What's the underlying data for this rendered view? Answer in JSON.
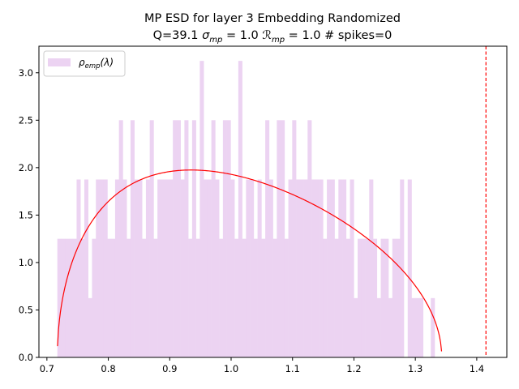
{
  "chart_data": {
    "type": "bar",
    "title_line1": "MP ESD for layer 3 Embedding Randomized",
    "title_line2": {
      "prefix": "Q=39.1 ",
      "sigma_sym": "σ",
      "sigma_sub": "mp",
      "sigma_val": " = 1.0 ",
      "r_sym": "ℛ",
      "r_sub": "mp",
      "r_val": " = 1.0 # spikes=0"
    },
    "legend": {
      "placement": "top-left",
      "rho": "ρ",
      "rho_sub": "emp",
      "rho_arg": "(λ)"
    },
    "xlim": [
      0.687,
      1.449
    ],
    "ylim": [
      0,
      3.28
    ],
    "x_ticks": [
      "0.7",
      "0.8",
      "0.9",
      "1.0",
      "1.1",
      "1.2",
      "1.3",
      "1.4"
    ],
    "y_ticks": [
      "0.0",
      "0.5",
      "1.0",
      "1.5",
      "2.0",
      "2.5",
      "3.0"
    ],
    "histogram": {
      "x_start": 0.717,
      "bin_width": 0.00627,
      "color": "#ecd3f2",
      "values": [
        1.25,
        1.25,
        1.25,
        1.25,
        1.25,
        1.875,
        1.25,
        1.875,
        0.625,
        1.25,
        1.875,
        1.875,
        1.875,
        1.25,
        1.25,
        1.875,
        2.5,
        1.875,
        1.25,
        2.5,
        1.875,
        1.875,
        1.25,
        1.875,
        2.5,
        1.25,
        1.875,
        1.875,
        1.875,
        1.875,
        2.5,
        2.5,
        1.875,
        2.5,
        1.25,
        2.5,
        1.25,
        3.125,
        1.875,
        1.875,
        2.5,
        1.875,
        1.25,
        2.5,
        2.5,
        1.875,
        1.25,
        3.125,
        1.25,
        1.875,
        1.875,
        1.25,
        1.875,
        1.25,
        2.5,
        1.875,
        1.25,
        2.5,
        2.5,
        1.25,
        1.875,
        2.5,
        1.875,
        1.875,
        1.875,
        2.5,
        1.875,
        1.875,
        1.875,
        1.25,
        1.875,
        1.875,
        1.25,
        1.875,
        1.875,
        1.25,
        1.875,
        0.625,
        1.25,
        1.25,
        1.25,
        1.875,
        1.25,
        0.625,
        1.25,
        1.25,
        0.625,
        1.25,
        1.25,
        1.875,
        0,
        1.875,
        0.625,
        0.625,
        0.625,
        0,
        0,
        0.625
      ]
    },
    "mp_curve": {
      "color": "#ff0000",
      "x_min": 0.717,
      "x_max": 1.343
    },
    "vline": {
      "x": 1.415,
      "color": "#ff0000",
      "style": "dashed"
    }
  }
}
